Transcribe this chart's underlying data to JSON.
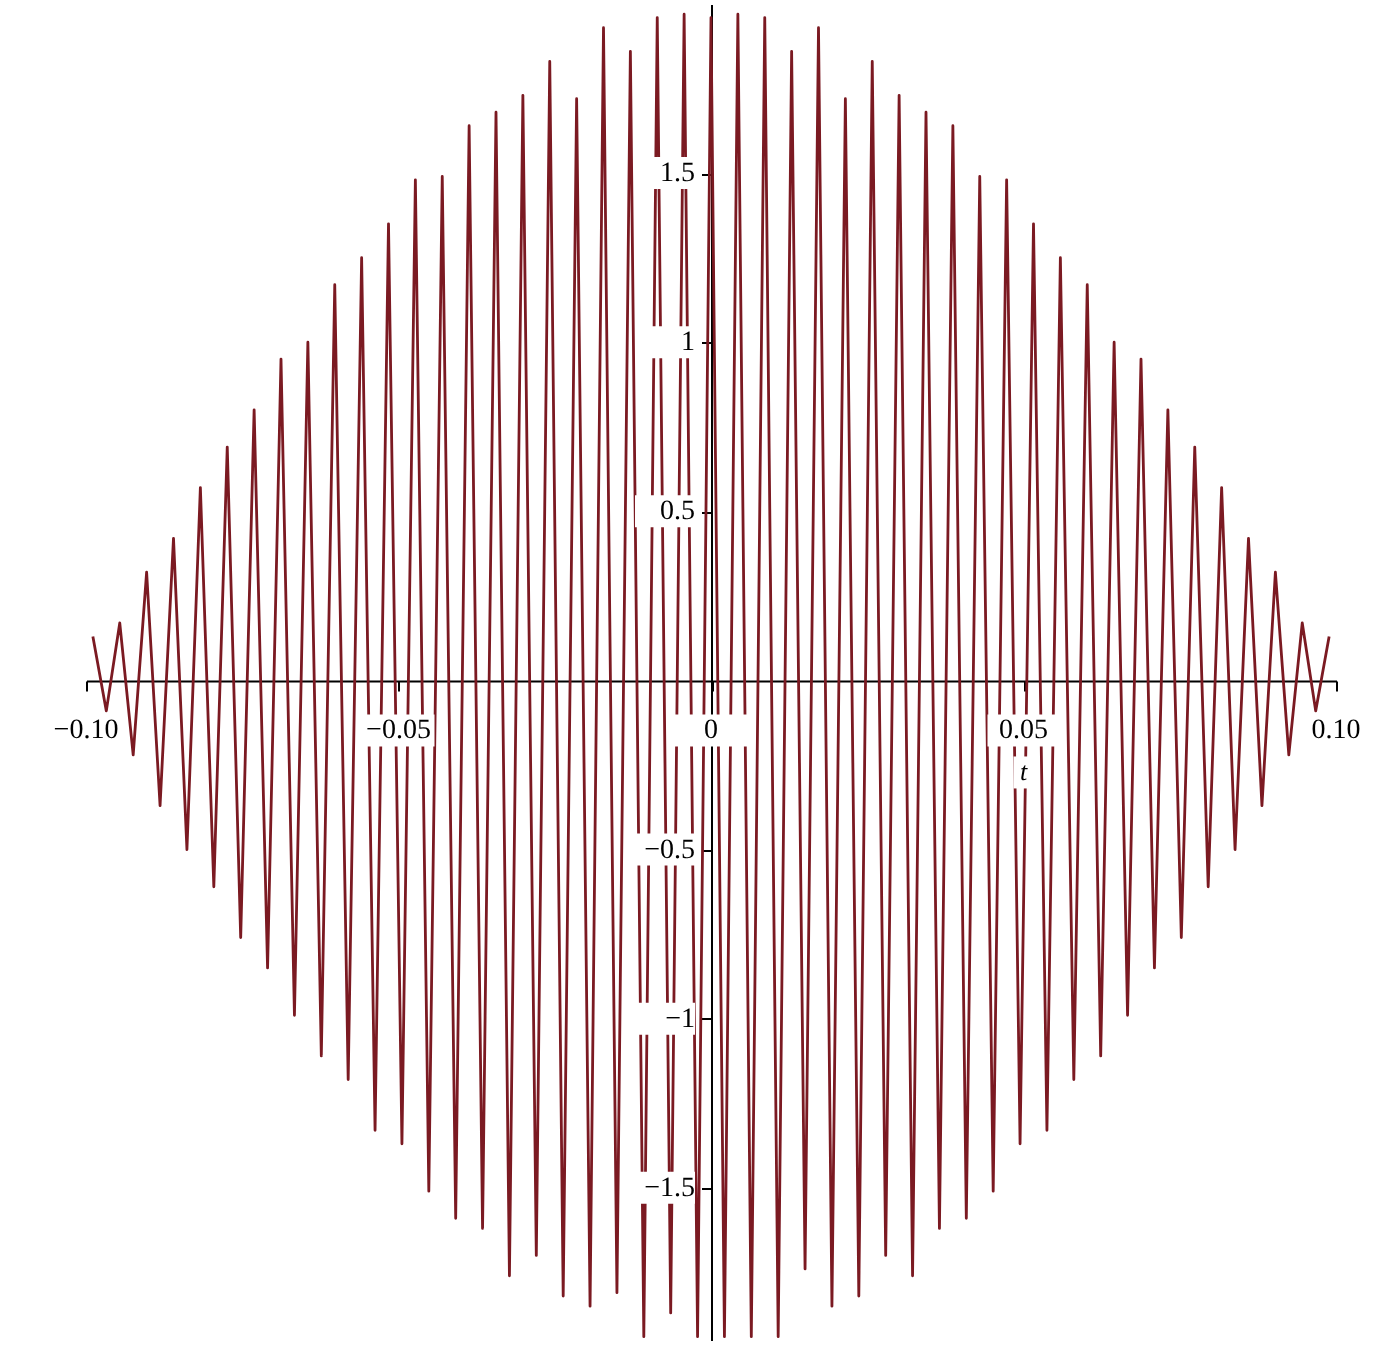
{
  "chart_data": {
    "type": "line",
    "xlabel": "t",
    "x": [
      -0.0989,
      -0.09675,
      -0.0946,
      -0.09245,
      -0.0903,
      -0.08815,
      -0.086,
      -0.08385,
      -0.0817,
      -0.07955,
      -0.0774,
      -0.07525,
      -0.0731,
      -0.07095,
      -0.0688,
      -0.06665,
      -0.0645,
      -0.06235,
      -0.0602,
      -0.05805,
      -0.0559,
      -0.05375,
      -0.0516,
      -0.04945,
      -0.0473,
      -0.04515,
      -0.043,
      -0.04085,
      -0.0387,
      -0.03655,
      -0.0344,
      -0.03225,
      -0.0301,
      -0.02795,
      -0.0258,
      -0.02365,
      -0.0215,
      -0.01935,
      -0.0172,
      -0.01505,
      -0.0129,
      -0.01075,
      -0.0086,
      -0.00645,
      -0.0043,
      -0.00215,
      0,
      0.00215,
      0.0043,
      0.00645,
      0.0086,
      0.01075,
      0.0129,
      0.01505,
      0.0172,
      0.01935,
      0.0215,
      0.02365,
      0.0258,
      0.02795,
      0.0301,
      0.03225,
      0.0344,
      0.03655,
      0.0387,
      0.04085,
      0.043,
      0.04515,
      0.0473,
      0.04945,
      0.0516,
      0.05375,
      0.0559,
      0.05805,
      0.0602,
      0.06235,
      0.0645,
      0.06665,
      0.0688,
      0.07095,
      0.0731,
      0.07525,
      0.0774,
      0.07955,
      0.0817,
      0.08385,
      0.086,
      0.08815,
      0.0903,
      0.09245,
      0.0946,
      0.09675,
      0.0989
    ],
    "series": [
      {
        "color": "#7b1a22",
        "values": [
          0.13,
          -0.09,
          0.17,
          -0.22,
          0.32,
          -0.37,
          0.42,
          -0.5,
          0.57,
          -0.61,
          0.69,
          -0.76,
          0.8,
          -0.85,
          0.95,
          -0.99,
          1.0,
          -1.11,
          1.17,
          -1.18,
          1.25,
          -1.33,
          1.35,
          -1.37,
          1.48,
          -1.51,
          1.49,
          -1.59,
          1.64,
          -1.62,
          1.68,
          -1.76,
          1.73,
          -1.7,
          1.83,
          -1.82,
          1.72,
          -1.85,
          1.93,
          -1.81,
          1.86,
          -1.94,
          1.96,
          -1.87,
          1.97,
          -1.94,
          1.96,
          -1.94,
          1.97,
          -1.94,
          1.96,
          -1.94,
          1.86,
          -1.74,
          1.93,
          -1.85,
          1.72,
          -1.82,
          1.83,
          -1.7,
          1.73,
          -1.76,
          1.68,
          -1.62,
          1.64,
          -1.59,
          1.49,
          -1.51,
          1.48,
          -1.37,
          1.35,
          -1.33,
          1.25,
          -1.18,
          1.17,
          -1.11,
          1.0,
          -0.99,
          0.95,
          -0.85,
          0.8,
          -0.76,
          0.69,
          -0.61,
          0.57,
          -0.5,
          0.42,
          -0.37,
          0.32,
          -0.22,
          0.17,
          -0.09,
          0.13
        ]
      }
    ],
    "xlim": [
      -0.1,
      0.1
    ],
    "ylim": [
      -1.95,
      2.0
    ],
    "xticks": [
      {
        "value": -0.1,
        "label": "−0.10"
      },
      {
        "value": -0.05,
        "label": "−0.05"
      },
      0,
      {
        "value": 0.05,
        "label": "0.05"
      },
      {
        "value": 0.1,
        "label": "0.10"
      }
    ],
    "yticks": [
      {
        "value": -1.5,
        "label": "−1.5"
      },
      {
        "value": -1,
        "label": "−1"
      },
      {
        "value": -0.5,
        "label": "−0.5"
      },
      0.5,
      1,
      1.5
    ],
    "grid": false,
    "line_style": "solid",
    "marker": "none"
  }
}
